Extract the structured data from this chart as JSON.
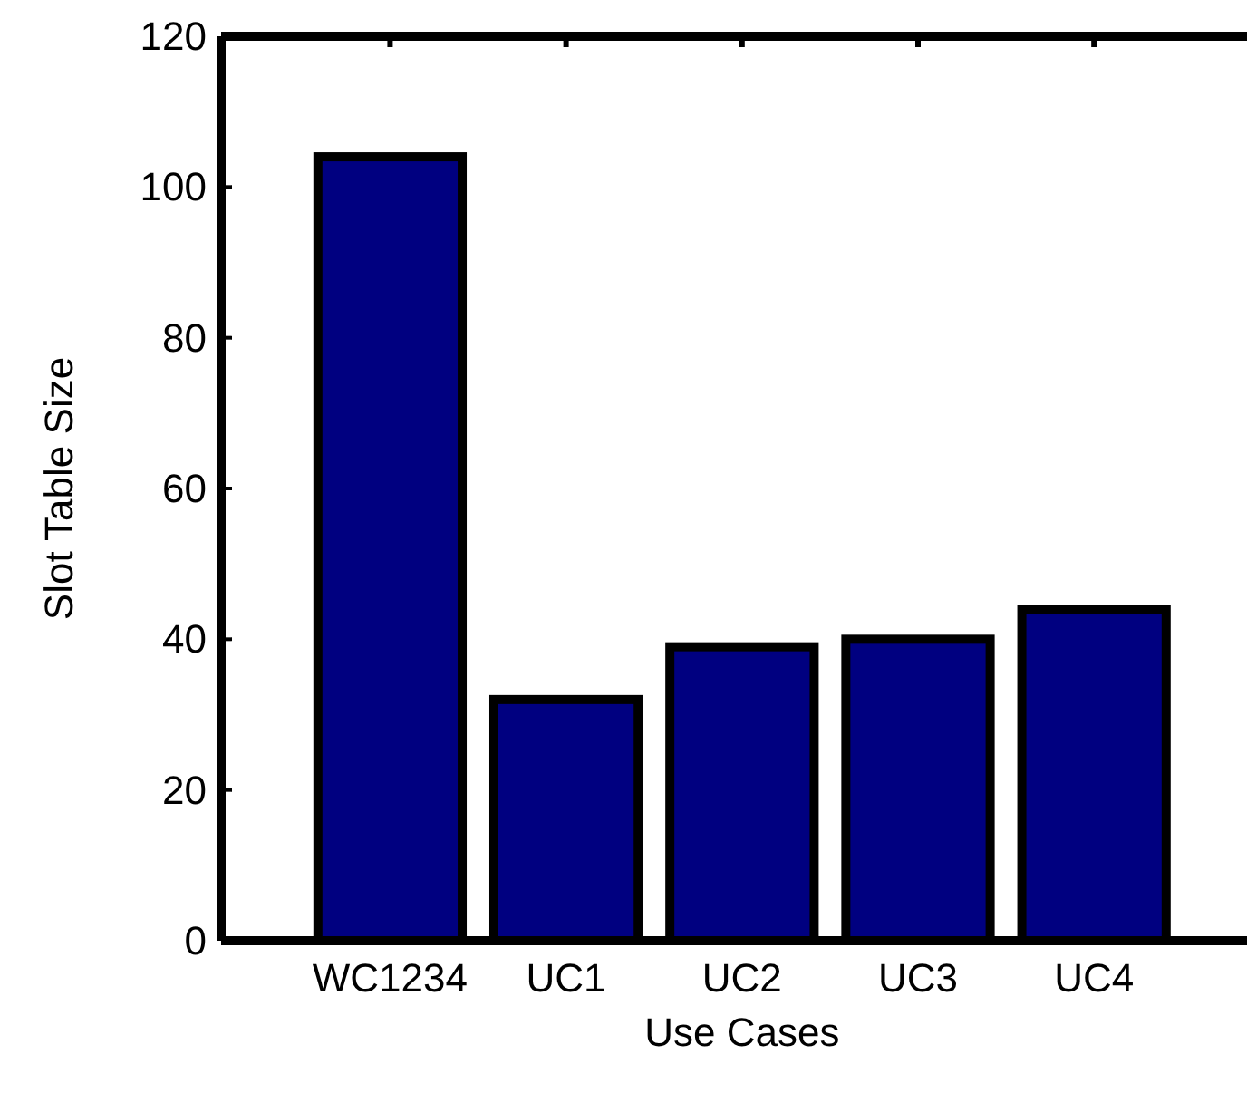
{
  "chart_data": {
    "type": "bar",
    "xlabel": "Use Cases",
    "ylabel": "Slot Table Size",
    "categories": [
      "WC1234",
      "UC1",
      "UC2",
      "UC3",
      "UC4"
    ],
    "values": [
      104,
      32,
      39,
      40,
      44
    ],
    "color": "#000080",
    "ylim": [
      0,
      120
    ],
    "yticks": [
      0,
      20,
      40,
      60,
      80,
      100,
      120
    ],
    "grid": false
  }
}
